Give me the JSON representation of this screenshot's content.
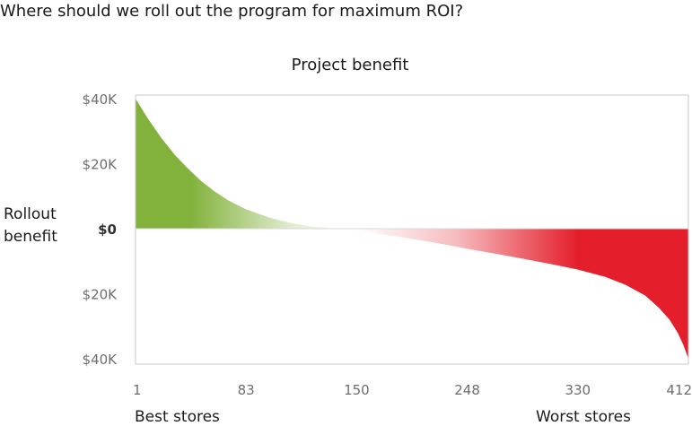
{
  "question": "Where should we roll out the program for maximum ROI?",
  "colors": {
    "positive": "#82b23b",
    "negative": "#e41e2b",
    "frame": "#c8c8c8",
    "zero_line": "#d8d8d8",
    "tick_text": "#6e6e6e"
  },
  "chart_data": {
    "type": "area",
    "title": "Project benefit",
    "ylabel": "Rollout\nbenefit",
    "y_tick_labels": [
      "$40K",
      "$20K",
      "$0",
      "$20K",
      "$40K"
    ],
    "y_tick_values": [
      40000,
      20000,
      0,
      -20000,
      -40000
    ],
    "ylim": [
      -40000,
      40000
    ],
    "x_tick_labels": [
      "1",
      "83",
      "150",
      "248",
      "330",
      "412"
    ],
    "x_tick_values": [
      1,
      83,
      150,
      248,
      330,
      412
    ],
    "xlim": [
      1,
      412
    ],
    "x_start_label": "Best stores",
    "x_end_label": "Worst stores",
    "grid": false,
    "legend": "none",
    "series": [
      {
        "x": [
          1,
          10,
          20,
          30,
          40,
          50,
          60,
          70,
          83,
          100,
          115,
          130,
          150,
          175,
          200,
          225,
          248,
          270,
          290,
          310,
          330,
          350,
          365,
          380,
          390,
          398,
          404,
          408,
          412
        ],
        "y": [
          40000,
          34000,
          28000,
          22800,
          18500,
          14600,
          11400,
          8700,
          6000,
          3500,
          1900,
          800,
          0,
          -1200,
          -2700,
          -4400,
          -6200,
          -7800,
          -9300,
          -10900,
          -12600,
          -14800,
          -17200,
          -20600,
          -24300,
          -28000,
          -32000,
          -35500,
          -40000
        ]
      }
    ]
  }
}
